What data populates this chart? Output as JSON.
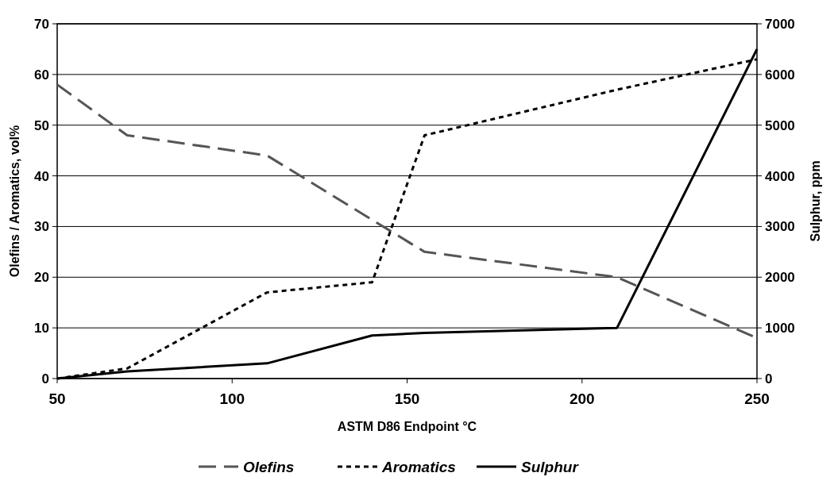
{
  "chart_data": {
    "type": "line",
    "xlabel": "ASTM D86 Endpoint °C",
    "ylabel": "Olefins / Aromatics, vol%",
    "y2label": "Sulphur, ppm",
    "xlim": [
      50,
      250
    ],
    "xticks": [
      50,
      100,
      150,
      200,
      250
    ],
    "ylim": [
      0,
      70
    ],
    "yticks": [
      0,
      10,
      20,
      30,
      40,
      50,
      60,
      70
    ],
    "y2lim": [
      0,
      7000
    ],
    "y2ticks": [
      0,
      1000,
      2000,
      3000,
      4000,
      5000,
      6000,
      7000
    ],
    "grid": "y",
    "legend": "bottom",
    "marker": "none",
    "series": [
      {
        "name": "Olefins",
        "color": "#555555",
        "line_style": "dashed",
        "x": [
          50,
          70,
          110,
          155,
          210,
          250
        ],
        "values": [
          58,
          48,
          44,
          25,
          20,
          8
        ]
      },
      {
        "name": "Aromatics",
        "color": "#000000",
        "line_style": "dotted",
        "x": [
          50,
          70,
          110,
          140,
          155,
          210,
          250
        ],
        "values": [
          0,
          2,
          17,
          19,
          48,
          57,
          63
        ]
      },
      {
        "name": "Sulphur",
        "color": "#000000",
        "line_style": "solid",
        "axis": "y2",
        "x": [
          50,
          70,
          110,
          140,
          155,
          210,
          250
        ],
        "values": [
          0,
          140,
          300,
          850,
          900,
          1000,
          6500
        ]
      }
    ]
  }
}
